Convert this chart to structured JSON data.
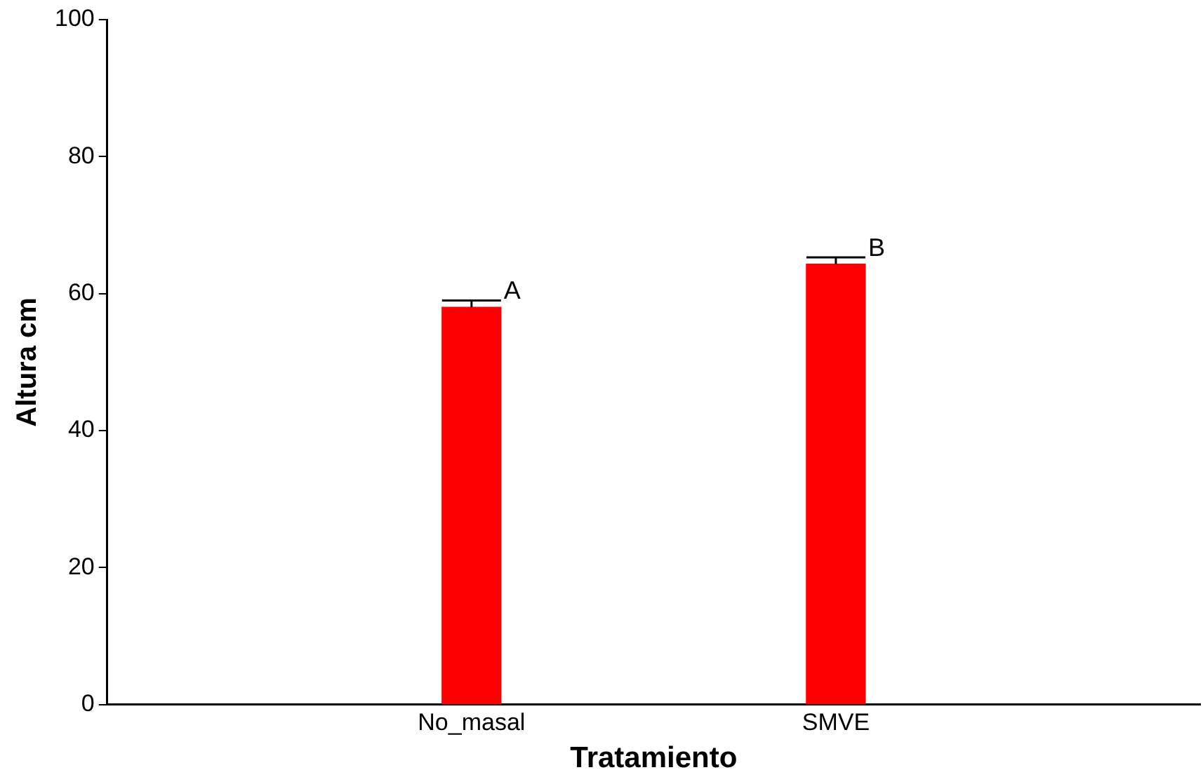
{
  "chart_data": {
    "type": "bar",
    "xlabel": "Tratamiento",
    "ylabel": "Altura cm",
    "categories": [
      "No_masal",
      "SMVE"
    ],
    "values": [
      58,
      64.3
    ],
    "color": "#ff0000",
    "errors": [
      [
        58,
        59
      ],
      [
        64.3,
        65.3
      ]
    ],
    "ylim": [
      0,
      100
    ],
    "yticks": [
      0,
      20,
      40,
      60,
      80,
      100
    ],
    "grid": false,
    "legend": false,
    "annotations": [
      "A",
      "B"
    ]
  }
}
